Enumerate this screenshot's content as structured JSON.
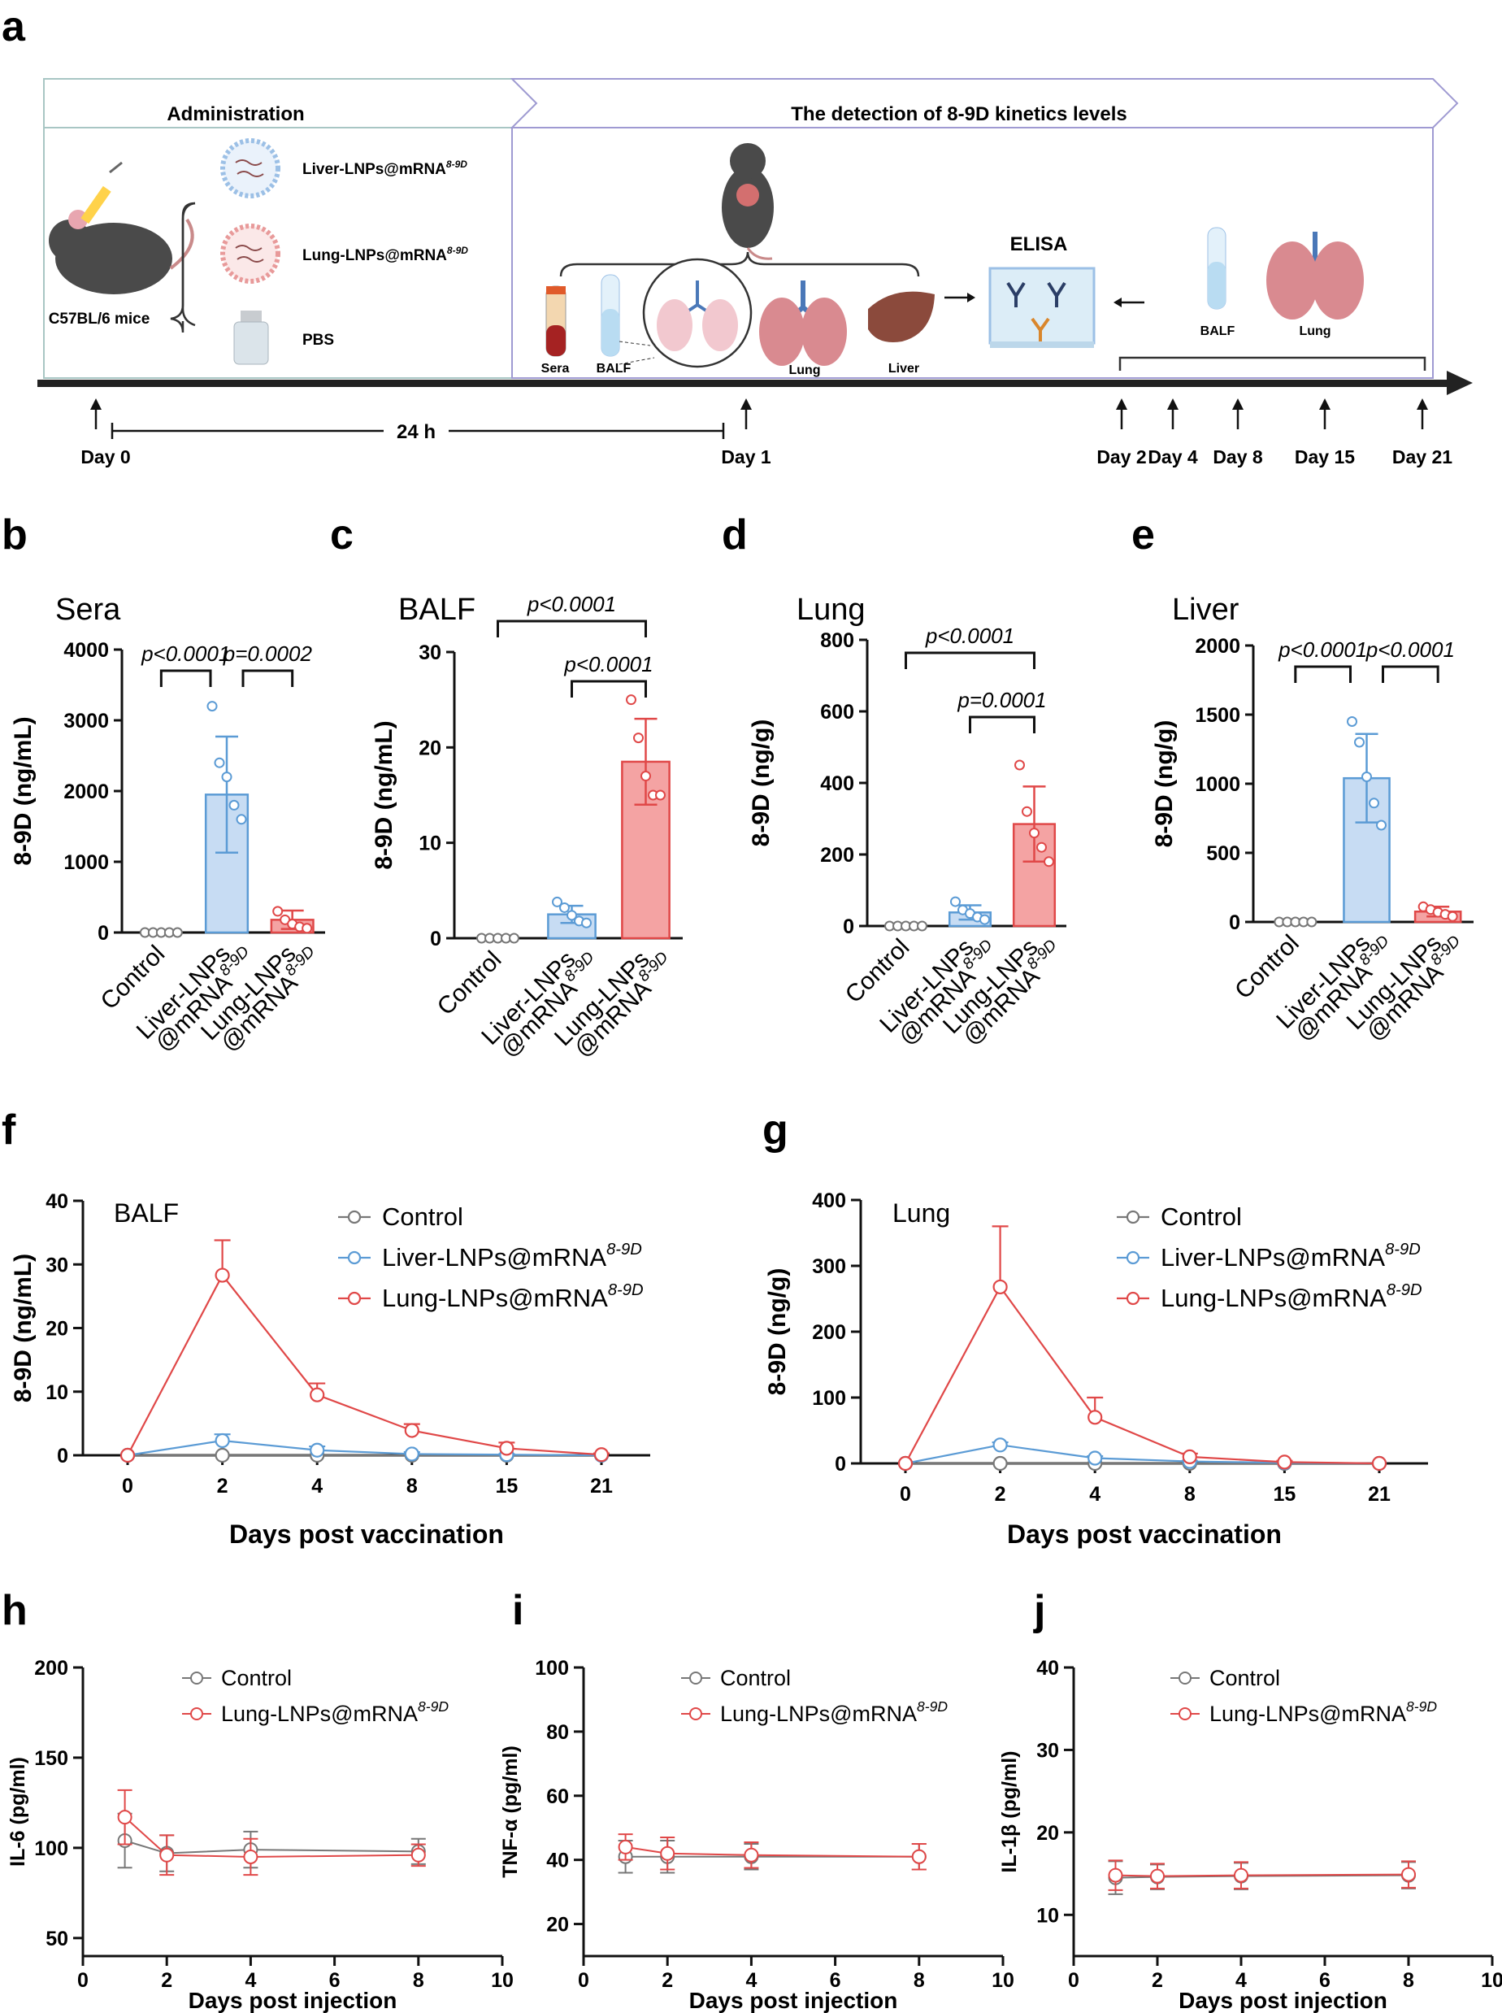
{
  "panels": {
    "a": "a",
    "b": "b",
    "c": "c",
    "d": "d",
    "e": "e",
    "f": "f",
    "g": "g",
    "h": "h",
    "i": "i",
    "j": "j"
  },
  "schematic": {
    "administration_title": "Administration",
    "detection_title": "The detection of 8-9D kinetics levels",
    "mice_label": "C57BL/6 mice",
    "liver_lnp_label": "Liver-LNPs@mRNA",
    "lung_lnp_label": "Lung-LNPs@mRNA",
    "superscript": "8-9D",
    "pbs_label": "PBS",
    "sera_label": "Sera",
    "balf_label": "BALF",
    "lung_label": "Lung",
    "liver_label": "Liver",
    "elisa_label": "ELISA",
    "duration_label": "24 h",
    "days": [
      "Day 0",
      "Day 1",
      "Day 2",
      "Day 4",
      "Day 8",
      "Day 15",
      "Day 21"
    ]
  },
  "colors": {
    "control": "#777777",
    "liver": "#5b9bd5",
    "lung": "#e04848",
    "liver_fill": "#c7dcf3",
    "lung_fill": "#f4a3a3",
    "axis": "#111111"
  },
  "chart_data": [
    {
      "id": "b",
      "type": "bar",
      "title": "Sera",
      "ylabel": "8-9D (ng/mL)",
      "ylim": [
        0,
        4000
      ],
      "yticks": [
        0,
        1000,
        2000,
        3000,
        4000
      ],
      "categories": [
        "Control",
        "Liver-LNPs\n@mRNA8-9D",
        "Lung-LNPs\n@mRNA8-9D"
      ],
      "values": [
        0,
        1950,
        180
      ],
      "errors": [
        0,
        820,
        130
      ],
      "points": [
        [
          0,
          0,
          0,
          0,
          0
        ],
        [
          3200,
          2400,
          2200,
          1800,
          1600
        ],
        [
          300,
          180,
          120,
          80,
          60
        ]
      ],
      "comparisons": [
        {
          "from": 0,
          "to": 1,
          "label": "p<0.0001"
        },
        {
          "from": 1,
          "to": 2,
          "label": "p=0.0002"
        }
      ]
    },
    {
      "id": "c",
      "type": "bar",
      "title": "BALF",
      "ylabel": "8-9D (ng/mL)",
      "ylim": [
        0,
        30
      ],
      "yticks": [
        0,
        10,
        20,
        30
      ],
      "categories": [
        "Control",
        "Liver-LNPs\n@mRNA8-9D",
        "Lung-LNPs\n@mRNA8-9D"
      ],
      "values": [
        0,
        2.5,
        18.5
      ],
      "errors": [
        0,
        0.9,
        4.5
      ],
      "points": [
        [
          0,
          0,
          0,
          0,
          0
        ],
        [
          3.8,
          3.2,
          2.4,
          1.8,
          1.6
        ],
        [
          25,
          21,
          17,
          15,
          15
        ]
      ],
      "comparisons": [
        {
          "from": 0,
          "to": 2,
          "label": "p<0.0001"
        },
        {
          "from": 1,
          "to": 2,
          "label": "p<0.0001"
        }
      ]
    },
    {
      "id": "d",
      "type": "bar",
      "title": "Lung",
      "ylabel": "8-9D (ng/g)",
      "ylim": [
        0,
        800
      ],
      "yticks": [
        0,
        200,
        400,
        600,
        800
      ],
      "categories": [
        "Control",
        "Liver-LNPs\n@mRNA8-9D",
        "Lung-LNPs\n@mRNA8-9D"
      ],
      "values": [
        0,
        38,
        285
      ],
      "errors": [
        0,
        20,
        105
      ],
      "points": [
        [
          0,
          0,
          0,
          0,
          0
        ],
        [
          68,
          45,
          35,
          25,
          18
        ],
        [
          450,
          320,
          260,
          220,
          180
        ]
      ],
      "comparisons": [
        {
          "from": 0,
          "to": 2,
          "label": "p<0.0001"
        },
        {
          "from": 1,
          "to": 2,
          "label": "p=0.0001"
        }
      ]
    },
    {
      "id": "e",
      "type": "bar",
      "title": "Liver",
      "ylabel": "8-9D (ng/g)",
      "ylim": [
        0,
        2000
      ],
      "yticks": [
        0,
        500,
        1000,
        1500,
        2000
      ],
      "categories": [
        "Control",
        "Liver-LNPs\n@mRNA8-9D",
        "Lung-LNPs\n@mRNA8-9D"
      ],
      "values": [
        0,
        1040,
        75
      ],
      "errors": [
        0,
        320,
        35
      ],
      "points": [
        [
          0,
          0,
          0,
          0,
          0
        ],
        [
          1450,
          1300,
          1050,
          860,
          700
        ],
        [
          110,
          90,
          70,
          55,
          40
        ]
      ],
      "comparisons": [
        {
          "from": 0,
          "to": 1,
          "label": "p<0.0001"
        },
        {
          "from": 1,
          "to": 2,
          "label": "p<0.0001"
        }
      ]
    },
    {
      "id": "f",
      "type": "line",
      "title": "BALF",
      "ylabel": "8-9D (ng/mL)",
      "xlabel": "Days post vaccination",
      "categories": [
        "0",
        "2",
        "4",
        "8",
        "15",
        "21"
      ],
      "ylim": [
        0,
        40
      ],
      "yticks": [
        0,
        10,
        20,
        30,
        40
      ],
      "series": [
        {
          "name": "Control",
          "values": [
            0,
            0,
            0,
            0,
            0,
            0
          ],
          "errors": [
            0,
            0,
            0,
            0,
            0,
            0
          ]
        },
        {
          "name": "Liver-LNPs@mRNA8-9D",
          "values": [
            0,
            2.3,
            0.8,
            0.2,
            0.1,
            0
          ],
          "errors": [
            0,
            1.0,
            0.6,
            0.3,
            0.1,
            0
          ]
        },
        {
          "name": "Lung-LNPs@mRNA8-9D",
          "values": [
            0,
            28.3,
            9.5,
            3.9,
            1.1,
            0.1
          ],
          "errors": [
            0,
            5.5,
            1.8,
            1.0,
            0.9,
            0.2
          ]
        }
      ]
    },
    {
      "id": "g",
      "type": "line",
      "title": "Lung",
      "ylabel": "8-9D (ng/g)",
      "xlabel": "Days post vaccination",
      "categories": [
        "0",
        "2",
        "4",
        "8",
        "15",
        "21"
      ],
      "ylim": [
        0,
        400
      ],
      "yticks": [
        0,
        100,
        200,
        300,
        400
      ],
      "series": [
        {
          "name": "Control",
          "values": [
            0,
            0,
            0,
            0,
            0,
            0
          ],
          "errors": [
            0,
            0,
            0,
            0,
            0,
            0
          ]
        },
        {
          "name": "Liver-LNPs@mRNA8-9D",
          "values": [
            0,
            28,
            8,
            3,
            1,
            0
          ],
          "errors": [
            0,
            4,
            3,
            1,
            1,
            0
          ]
        },
        {
          "name": "Lung-LNPs@mRNA8-9D",
          "values": [
            0,
            268,
            70,
            10,
            2,
            0
          ],
          "errors": [
            0,
            92,
            30,
            5,
            2,
            0
          ]
        }
      ]
    },
    {
      "id": "h",
      "type": "line",
      "ylabel": "IL-6 (pg/ml)",
      "xlabel": "Days post injection",
      "xlim": [
        0,
        10
      ],
      "xticks": [
        0,
        2,
        4,
        6,
        8,
        10
      ],
      "ylim": [
        40,
        200
      ],
      "yticks": [
        50,
        100,
        150,
        200
      ],
      "series": [
        {
          "name": "Control",
          "x": [
            1,
            2,
            4,
            8
          ],
          "values": [
            104,
            97,
            99,
            98
          ],
          "errors": [
            15,
            10,
            10,
            7
          ]
        },
        {
          "name": "Lung-LNPs@mRNA8-9D",
          "x": [
            1,
            2,
            4,
            8
          ],
          "values": [
            117,
            96,
            95,
            96
          ],
          "errors": [
            15,
            11,
            10,
            6
          ]
        }
      ]
    },
    {
      "id": "i",
      "type": "line",
      "ylabel": "TNF-α (pg/ml)",
      "xlabel": "Days post injection",
      "xlim": [
        0,
        10
      ],
      "xticks": [
        0,
        2,
        4,
        6,
        8,
        10
      ],
      "ylim": [
        10,
        100
      ],
      "yticks": [
        20,
        40,
        60,
        80,
        100
      ],
      "series": [
        {
          "name": "Control",
          "x": [
            1,
            2,
            4,
            8
          ],
          "values": [
            41,
            41,
            41,
            41
          ],
          "errors": [
            5,
            5,
            4,
            4
          ]
        },
        {
          "name": "Lung-LNPs@mRNA8-9D",
          "x": [
            1,
            2,
            4,
            8
          ],
          "values": [
            44,
            42,
            41.5,
            41
          ],
          "errors": [
            4,
            5,
            4,
            4
          ]
        }
      ]
    },
    {
      "id": "j",
      "type": "line",
      "ylabel": "IL-1β (pg/ml)",
      "xlabel": "Days post injection",
      "xlim": [
        0,
        10
      ],
      "xticks": [
        0,
        2,
        4,
        6,
        8,
        10
      ],
      "ylim": [
        5,
        40
      ],
      "yticks": [
        10,
        20,
        30,
        40
      ],
      "series": [
        {
          "name": "Control",
          "x": [
            1,
            2,
            4,
            8
          ],
          "values": [
            14.5,
            14.6,
            14.7,
            14.8
          ],
          "errors": [
            2,
            1.5,
            1.6,
            1.6
          ]
        },
        {
          "name": "Lung-LNPs@mRNA8-9D",
          "x": [
            1,
            2,
            4,
            8
          ],
          "values": [
            14.8,
            14.7,
            14.8,
            14.9
          ],
          "errors": [
            1.8,
            1.5,
            1.6,
            1.6
          ]
        }
      ]
    }
  ]
}
